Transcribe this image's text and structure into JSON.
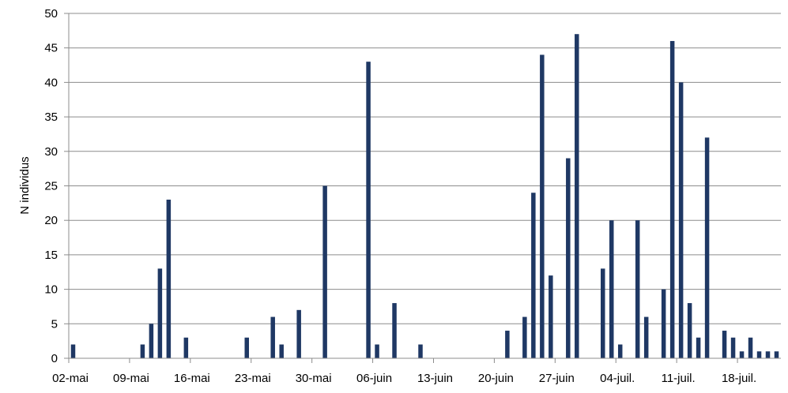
{
  "chart_data": {
    "type": "bar",
    "title": "",
    "xlabel": "",
    "ylabel": "N individus",
    "ylim": [
      0,
      50
    ],
    "y_ticks": [
      "0",
      "5",
      "10",
      "15",
      "20",
      "25",
      "30",
      "35",
      "40",
      "45",
      "50"
    ],
    "x_ticks": [
      {
        "date": "2014-05-02",
        "label": "02-mai"
      },
      {
        "date": "2014-05-09",
        "label": "09-mai"
      },
      {
        "date": "2014-05-16",
        "label": "16-mai"
      },
      {
        "date": "2014-05-23",
        "label": "23-mai"
      },
      {
        "date": "2014-05-30",
        "label": "30-mai"
      },
      {
        "date": "2014-06-06",
        "label": "06-juin"
      },
      {
        "date": "2014-06-13",
        "label": "13-juin"
      },
      {
        "date": "2014-06-20",
        "label": "20-juin"
      },
      {
        "date": "2014-06-27",
        "label": "27-juin"
      },
      {
        "date": "2014-07-04",
        "label": "04-juil."
      },
      {
        "date": "2014-07-11",
        "label": "11-juil."
      },
      {
        "date": "2014-07-18",
        "label": "18-juil."
      }
    ],
    "x_range": [
      "2014-05-02",
      "2014-07-21"
    ],
    "grid": true,
    "bar_color": "#1f3864",
    "points": [
      {
        "date": "2014-05-02",
        "value": 2
      },
      {
        "date": "2014-05-10",
        "value": 2
      },
      {
        "date": "2014-05-11",
        "value": 5
      },
      {
        "date": "2014-05-12",
        "value": 13
      },
      {
        "date": "2014-05-13",
        "value": 23
      },
      {
        "date": "2014-05-15",
        "value": 3
      },
      {
        "date": "2014-05-22",
        "value": 3
      },
      {
        "date": "2014-05-25",
        "value": 6
      },
      {
        "date": "2014-05-26",
        "value": 2
      },
      {
        "date": "2014-05-28",
        "value": 7
      },
      {
        "date": "2014-05-31",
        "value": 25
      },
      {
        "date": "2014-06-05",
        "value": 43
      },
      {
        "date": "2014-06-06",
        "value": 2
      },
      {
        "date": "2014-06-08",
        "value": 8
      },
      {
        "date": "2014-06-11",
        "value": 2
      },
      {
        "date": "2014-06-21",
        "value": 4
      },
      {
        "date": "2014-06-23",
        "value": 6
      },
      {
        "date": "2014-06-24",
        "value": 24
      },
      {
        "date": "2014-06-25",
        "value": 44
      },
      {
        "date": "2014-06-26",
        "value": 12
      },
      {
        "date": "2014-06-28",
        "value": 29
      },
      {
        "date": "2014-06-29",
        "value": 47
      },
      {
        "date": "2014-07-02",
        "value": 13
      },
      {
        "date": "2014-07-03",
        "value": 20
      },
      {
        "date": "2014-07-04",
        "value": 2
      },
      {
        "date": "2014-07-06",
        "value": 20
      },
      {
        "date": "2014-07-07",
        "value": 6
      },
      {
        "date": "2014-07-09",
        "value": 10
      },
      {
        "date": "2014-07-10",
        "value": 46
      },
      {
        "date": "2014-07-11",
        "value": 40
      },
      {
        "date": "2014-07-12",
        "value": 8
      },
      {
        "date": "2014-07-13",
        "value": 3
      },
      {
        "date": "2014-07-14",
        "value": 32
      },
      {
        "date": "2014-07-16",
        "value": 4
      },
      {
        "date": "2014-07-17",
        "value": 3
      },
      {
        "date": "2014-07-18",
        "value": 1
      },
      {
        "date": "2014-07-19",
        "value": 3
      },
      {
        "date": "2014-07-20",
        "value": 1
      },
      {
        "date": "2014-07-21",
        "value": 1
      },
      {
        "date": "2014-07-22",
        "value": 1
      }
    ]
  }
}
